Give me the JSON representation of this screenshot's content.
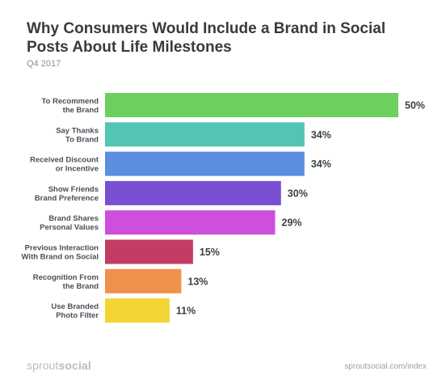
{
  "chart_data": {
    "type": "bar",
    "orientation": "horizontal",
    "title": "Why Consumers Would Include a Brand in Social Posts About Life Milestones",
    "subtitle": "Q4 2017",
    "categories": [
      [
        "To Recommend",
        "the Brand"
      ],
      [
        "Say Thanks",
        "To Brand"
      ],
      [
        "Received Discount",
        "or Incentive"
      ],
      [
        "Show Friends",
        "Brand Preference"
      ],
      [
        "Brand Shares",
        "Personal Values"
      ],
      [
        "Previous Interaction",
        "With Brand on Social"
      ],
      [
        "Recognition From",
        "the Brand"
      ],
      [
        "Use Branded",
        "Photo Filter"
      ]
    ],
    "values": [
      50,
      34,
      34,
      30,
      29,
      15,
      13,
      11
    ],
    "value_labels": [
      "50%",
      "34%",
      "34%",
      "30%",
      "29%",
      "15%",
      "13%",
      "11%"
    ],
    "colors": [
      "#6ccf5e",
      "#52c6b3",
      "#5b8ee0",
      "#7b4fd1",
      "#cd4fdb",
      "#c23c63",
      "#ef914b",
      "#f3d533"
    ],
    "xlim": [
      0,
      50
    ],
    "grid": false,
    "legend": "none"
  },
  "footer": {
    "brand_light": "sprout",
    "brand_bold": "social",
    "url": "sproutsocial.com/index"
  }
}
